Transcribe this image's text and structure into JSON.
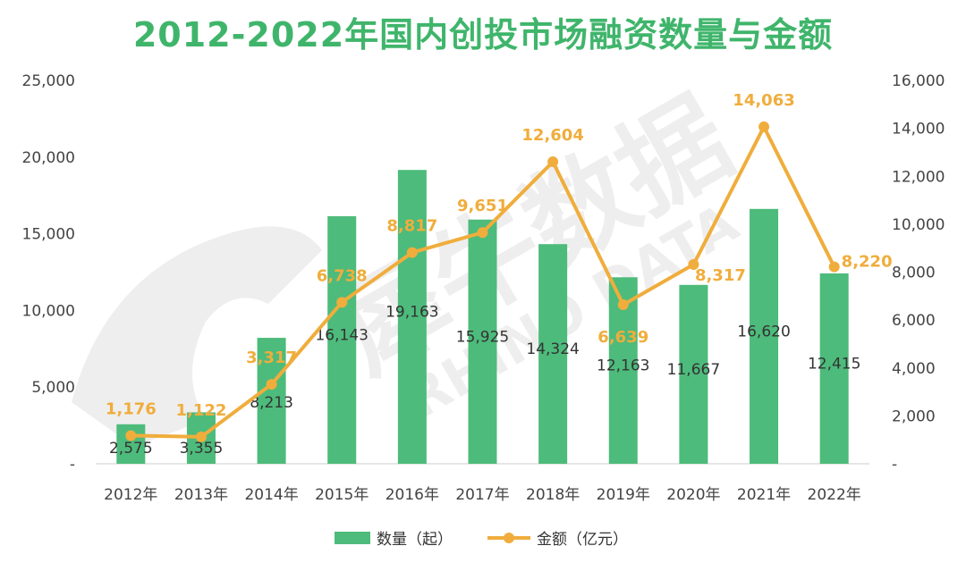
{
  "chart_data": {
    "type": "bar",
    "title": "2012-2022年国内创投市场融资数量与金额",
    "categories": [
      "2012年",
      "2013年",
      "2014年",
      "2015年",
      "2016年",
      "2017年",
      "2018年",
      "2019年",
      "2020年",
      "2021年",
      "2022年"
    ],
    "series": [
      {
        "name": "数量（起）",
        "type": "bar",
        "axis": "left",
        "values": [
          2575,
          3355,
          8213,
          16143,
          19163,
          15925,
          14324,
          12163,
          11667,
          16620,
          12415
        ],
        "labels": [
          "2,575",
          "3,355",
          "8,213",
          "16,143",
          "19,163",
          "15,925",
          "14,324",
          "12,163",
          "11,667",
          "16,620",
          "12,415"
        ]
      },
      {
        "name": "金额（亿元）",
        "type": "line",
        "axis": "right",
        "values": [
          1176,
          1122,
          3317,
          6738,
          8817,
          9651,
          12604,
          6639,
          8317,
          14063,
          8220
        ],
        "labels": [
          "1,176",
          "1,122",
          "3,317",
          "6,738",
          "8,817",
          "9,651",
          "12,604",
          "6,639",
          "8,317",
          "14,063",
          "8,220"
        ]
      }
    ],
    "y_left": {
      "min": 0,
      "max": 25000,
      "ticks": [
        "-",
        "5,000",
        "10,000",
        "15,000",
        "20,000",
        "25,000"
      ],
      "tick_values": [
        0,
        5000,
        10000,
        15000,
        20000,
        25000
      ]
    },
    "y_right": {
      "min": 0,
      "max": 16000,
      "ticks": [
        "-",
        "2,000",
        "4,000",
        "6,000",
        "8,000",
        "10,000",
        "12,000",
        "14,000",
        "16,000"
      ],
      "tick_values": [
        0,
        2000,
        4000,
        6000,
        8000,
        10000,
        12000,
        14000,
        16000
      ]
    },
    "grid": false,
    "legend_position": "bottom",
    "colors": {
      "bar": "#4dbb7b",
      "line": "#f0ad3c",
      "title": "#3fb56b",
      "axis": "#cccccc"
    }
  },
  "watermark": {
    "main": "犀牛数据",
    "sub": "RHINO DATA"
  }
}
